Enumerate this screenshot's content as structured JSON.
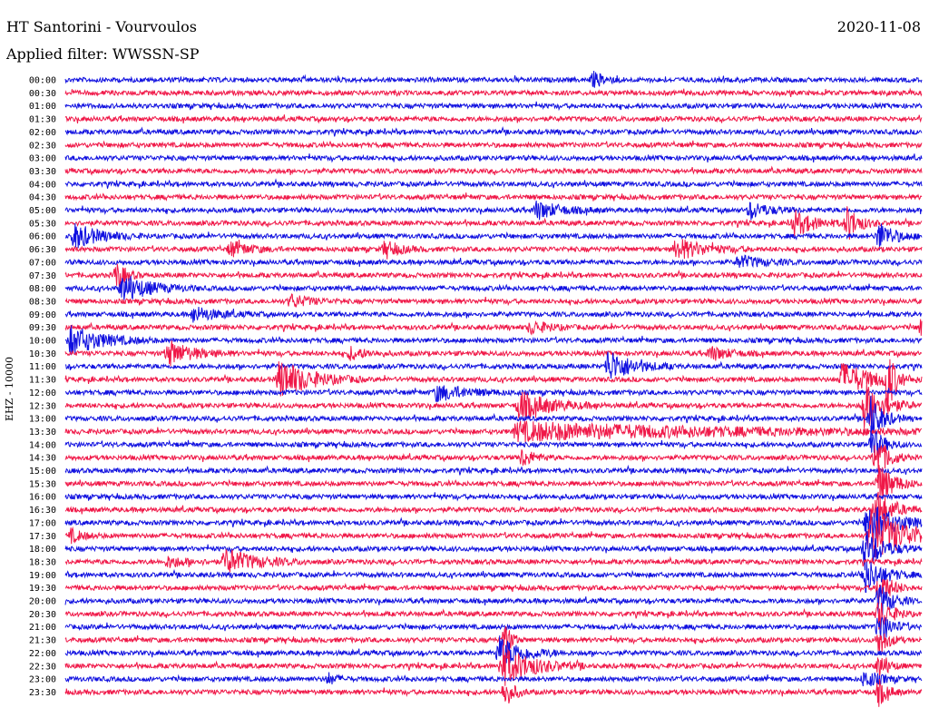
{
  "header": {
    "station": "HT Santorini - Vourvoulos",
    "date": "2020-11-08",
    "filter": "Applied filter: WWSSN-SP",
    "channel": "EHZ - 10000"
  },
  "chart_data": {
    "type": "line",
    "title": "HT Santorini - Vourvoulos",
    "subtitle": "Applied filter: WWSSN-SP",
    "ylabel": "EHZ - 10000",
    "xlabel": "",
    "rows": [
      "00:00",
      "00:30",
      "01:00",
      "01:30",
      "02:00",
      "02:30",
      "03:00",
      "03:30",
      "04:00",
      "04:30",
      "05:00",
      "05:30",
      "06:00",
      "06:30",
      "07:00",
      "07:30",
      "08:00",
      "08:30",
      "09:00",
      "09:30",
      "10:00",
      "10:30",
      "11:00",
      "11:30",
      "12:00",
      "12:30",
      "13:00",
      "13:30",
      "14:00",
      "14:30",
      "15:00",
      "15:30",
      "16:00",
      "16:30",
      "17:00",
      "17:30",
      "18:00",
      "18:30",
      "19:00",
      "19:30",
      "20:00",
      "20:30",
      "21:00",
      "21:30",
      "22:00",
      "22:30",
      "23:00",
      "23:30"
    ],
    "colors": {
      "even": "#1010e0",
      "odd": "#f01848"
    },
    "events": [
      {
        "row": 0,
        "minute": 18.5,
        "amp": 8,
        "dur": 0.4
      },
      {
        "row": 10,
        "minute": 16.5,
        "amp": 10,
        "dur": 0.8
      },
      {
        "row": 10,
        "minute": 24.0,
        "amp": 9,
        "dur": 0.6
      },
      {
        "row": 11,
        "minute": 25.5,
        "amp": 14,
        "dur": 0.7
      },
      {
        "row": 11,
        "minute": 27.4,
        "amp": 18,
        "dur": 0.4
      },
      {
        "row": 12,
        "minute": 0.3,
        "amp": 14,
        "dur": 0.8
      },
      {
        "row": 12,
        "minute": 28.5,
        "amp": 16,
        "dur": 0.5
      },
      {
        "row": 13,
        "minute": 5.8,
        "amp": 9,
        "dur": 0.6
      },
      {
        "row": 13,
        "minute": 11.2,
        "amp": 9,
        "dur": 0.5
      },
      {
        "row": 13,
        "minute": 21.4,
        "amp": 12,
        "dur": 0.9
      },
      {
        "row": 14,
        "minute": 23.6,
        "amp": 7,
        "dur": 0.8
      },
      {
        "row": 15,
        "minute": 1.8,
        "amp": 16,
        "dur": 0.3
      },
      {
        "row": 16,
        "minute": 2.0,
        "amp": 15,
        "dur": 0.9
      },
      {
        "row": 17,
        "minute": 7.9,
        "amp": 7,
        "dur": 0.6
      },
      {
        "row": 18,
        "minute": 4.5,
        "amp": 8,
        "dur": 0.8
      },
      {
        "row": 19,
        "minute": 16.3,
        "amp": 7,
        "dur": 0.6
      },
      {
        "row": 19,
        "minute": 30.0,
        "amp": 20,
        "dur": 1.2
      },
      {
        "row": 20,
        "minute": 0.2,
        "amp": 16,
        "dur": 1.0
      },
      {
        "row": 21,
        "minute": 3.6,
        "amp": 14,
        "dur": 0.8
      },
      {
        "row": 21,
        "minute": 10.0,
        "amp": 7,
        "dur": 0.5
      },
      {
        "row": 21,
        "minute": 22.6,
        "amp": 8,
        "dur": 0.6
      },
      {
        "row": 22,
        "minute": 19.0,
        "amp": 18,
        "dur": 0.8
      },
      {
        "row": 23,
        "minute": 7.5,
        "amp": 22,
        "dur": 1.0
      },
      {
        "row": 23,
        "minute": 27.2,
        "amp": 18,
        "dur": 1.0
      },
      {
        "row": 23,
        "minute": 28.8,
        "amp": 40,
        "dur": 0.2
      },
      {
        "row": 24,
        "minute": 13.0,
        "amp": 9,
        "dur": 1.0
      },
      {
        "row": 25,
        "minute": 15.9,
        "amp": 16,
        "dur": 1.0
      },
      {
        "row": 25,
        "minute": 28.0,
        "amp": 28,
        "dur": 0.6
      },
      {
        "row": 26,
        "minute": 28.2,
        "amp": 26,
        "dur": 0.4
      },
      {
        "row": 27,
        "minute": 15.8,
        "amp": 10,
        "dur": 7.0
      },
      {
        "row": 28,
        "minute": 28.2,
        "amp": 20,
        "dur": 0.4
      },
      {
        "row": 29,
        "minute": 16.0,
        "amp": 10,
        "dur": 0.4
      },
      {
        "row": 29,
        "minute": 28.4,
        "amp": 24,
        "dur": 0.4
      },
      {
        "row": 31,
        "minute": 28.5,
        "amp": 22,
        "dur": 0.5
      },
      {
        "row": 33,
        "minute": 28.4,
        "amp": 22,
        "dur": 0.5
      },
      {
        "row": 34,
        "minute": 28.1,
        "amp": 26,
        "dur": 0.8
      },
      {
        "row": 35,
        "minute": 28.2,
        "amp": 30,
        "dur": 1.2
      },
      {
        "row": 35,
        "minute": 0.2,
        "amp": 7,
        "dur": 0.4
      },
      {
        "row": 36,
        "minute": 28.0,
        "amp": 22,
        "dur": 0.6
      },
      {
        "row": 37,
        "minute": 5.6,
        "amp": 14,
        "dur": 1.0
      },
      {
        "row": 37,
        "minute": 3.6,
        "amp": 6,
        "dur": 0.6
      },
      {
        "row": 38,
        "minute": 28.0,
        "amp": 20,
        "dur": 0.6
      },
      {
        "row": 39,
        "minute": 28.5,
        "amp": 20,
        "dur": 0.4
      },
      {
        "row": 40,
        "minute": 28.5,
        "amp": 20,
        "dur": 0.4
      },
      {
        "row": 41,
        "minute": 28.5,
        "amp": 18,
        "dur": 0.4
      },
      {
        "row": 42,
        "minute": 28.5,
        "amp": 18,
        "dur": 0.4
      },
      {
        "row": 43,
        "minute": 15.4,
        "amp": 22,
        "dur": 0.2
      },
      {
        "row": 43,
        "minute": 28.5,
        "amp": 16,
        "dur": 0.3
      },
      {
        "row": 44,
        "minute": 15.2,
        "amp": 18,
        "dur": 0.8
      },
      {
        "row": 45,
        "minute": 15.3,
        "amp": 22,
        "dur": 1.0
      },
      {
        "row": 45,
        "minute": 28.5,
        "amp": 14,
        "dur": 0.3
      },
      {
        "row": 46,
        "minute": 28.0,
        "amp": 10,
        "dur": 0.5
      },
      {
        "row": 46,
        "minute": 9.2,
        "amp": 6,
        "dur": 0.3
      },
      {
        "row": 47,
        "minute": 15.4,
        "amp": 16,
        "dur": 0.3
      },
      {
        "row": 47,
        "minute": 28.5,
        "amp": 14,
        "dur": 0.3
      }
    ]
  }
}
